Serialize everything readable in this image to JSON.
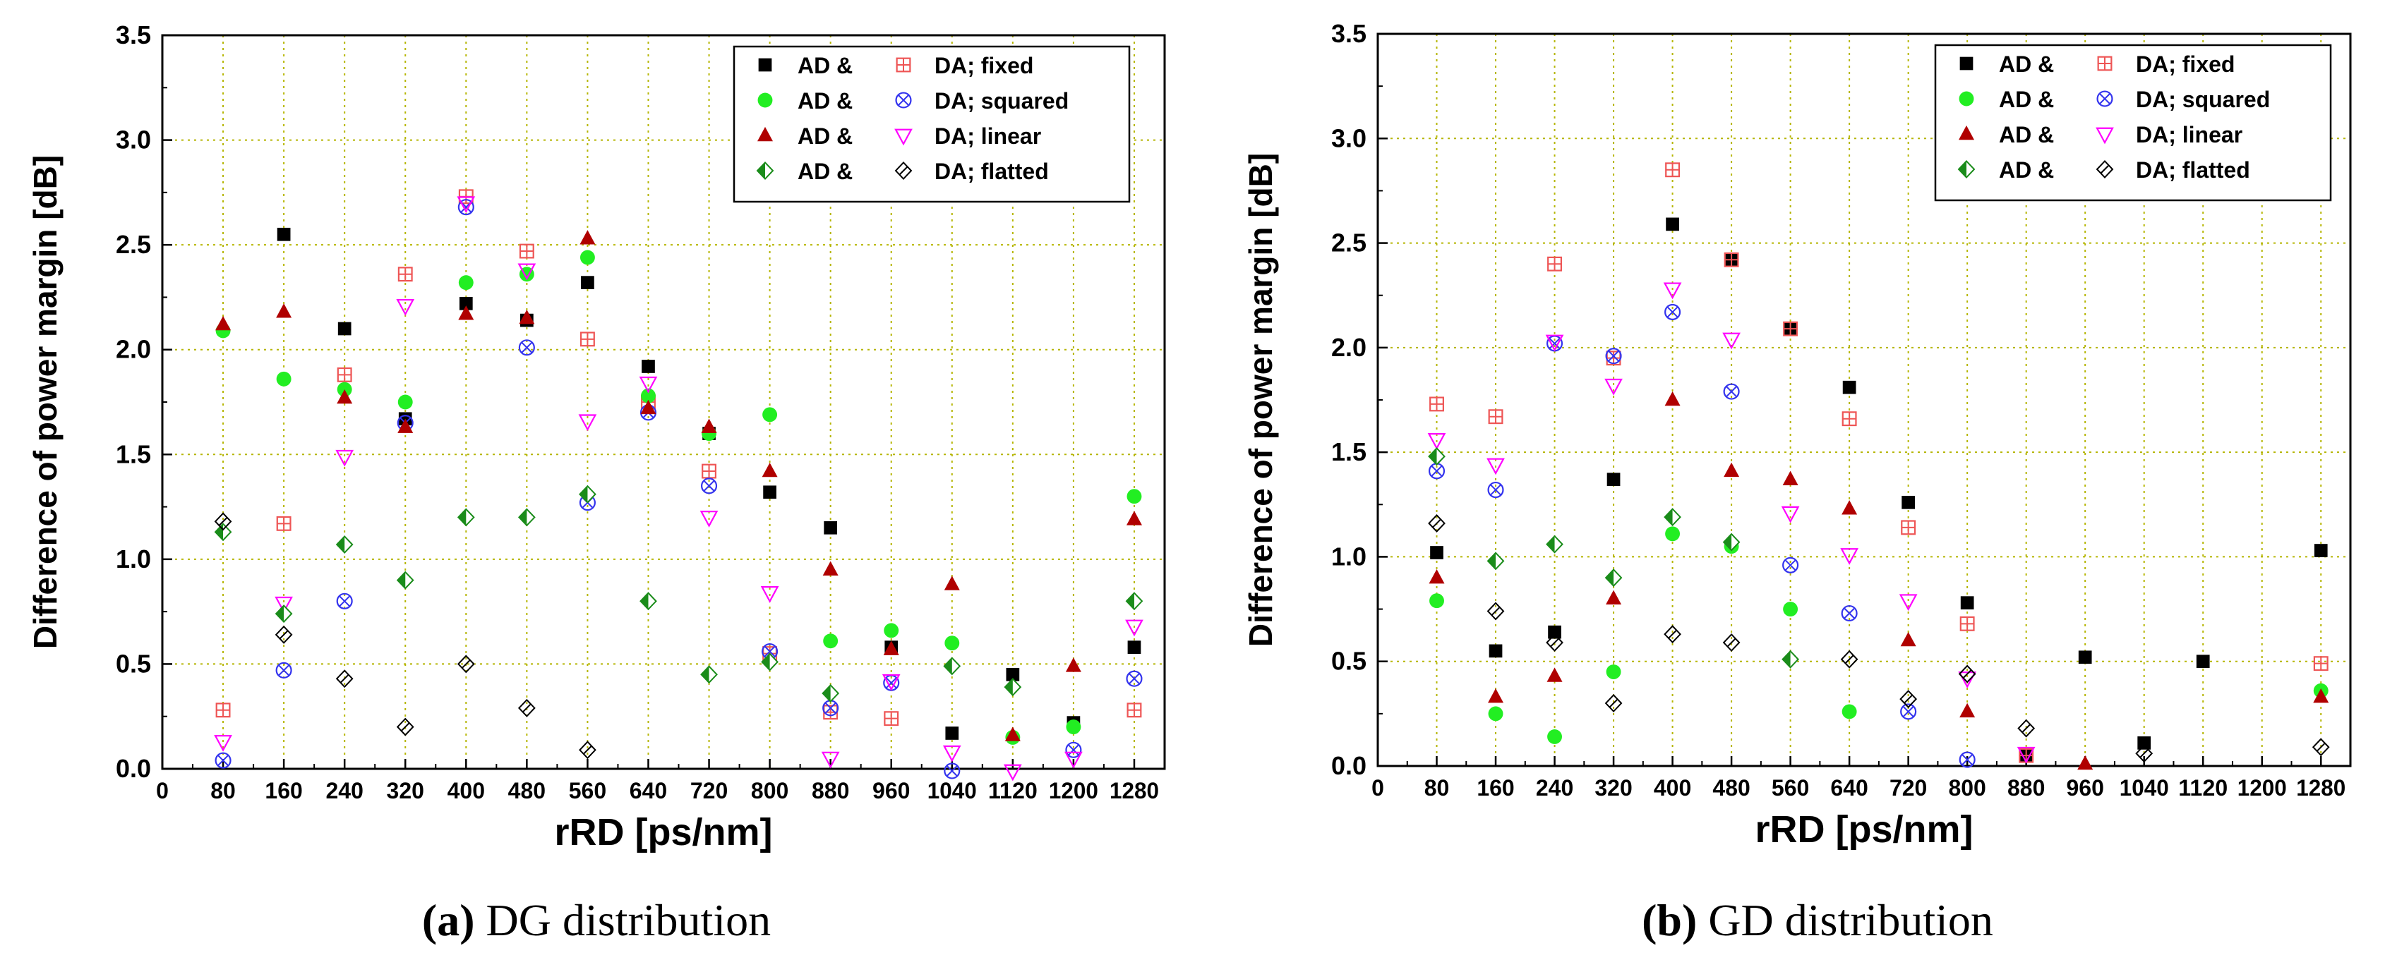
{
  "colors": {
    "axis": "#000000",
    "grid": "#b5b500",
    "black_square": "#000000",
    "green_circle": "#22ee22",
    "red_triangle": "#b00000",
    "green_diamond": "#1a8c1a",
    "red_squarecross": "#ee5555",
    "blue_circlecross": "#3333ee",
    "magenta_triangle": "#ff00ff",
    "black_diamond": "#000000"
  },
  "chart_data": [
    {
      "type": "scatter",
      "caption": {
        "label": "(a)",
        "text": "DG distribution"
      },
      "xlabel": "rRD [ps/nm]",
      "ylabel": "Difference of power margin [dB]",
      "xlim": [
        0,
        1320
      ],
      "ylim": [
        0,
        3.5
      ],
      "xticks": [
        "0",
        "80",
        "160",
        "240",
        "320",
        "400",
        "480",
        "560",
        "640",
        "720",
        "800",
        "880",
        "960",
        "1040",
        "1120",
        "1200",
        "1280"
      ],
      "yticks": [
        "0.0",
        "0.5",
        "1.0",
        "1.5",
        "2.0",
        "2.5",
        "3.0",
        "3.5"
      ],
      "grid": true,
      "legend_position": "top-right",
      "legend": [
        {
          "left": "AD &",
          "right": "DA; fixed"
        },
        {
          "left": "AD &",
          "right": "DA; squared"
        },
        {
          "left": "AD &",
          "right": "DA; linear"
        },
        {
          "left": "AD &",
          "right": "DA; flatted"
        }
      ],
      "series": [
        {
          "marker": "square",
          "color": "black_square",
          "points": [
            [
              160,
              2.55
            ],
            [
              240,
              2.1
            ],
            [
              320,
              1.67
            ],
            [
              400,
              2.22
            ],
            [
              480,
              2.14
            ],
            [
              560,
              2.32
            ],
            [
              640,
              1.92
            ],
            [
              720,
              1.6
            ],
            [
              800,
              1.32
            ],
            [
              880,
              1.15
            ],
            [
              960,
              0.58
            ],
            [
              1040,
              0.17
            ],
            [
              1120,
              0.45
            ],
            [
              1200,
              0.22
            ],
            [
              1280,
              0.58
            ]
          ]
        },
        {
          "marker": "square-cross",
          "color": "red_squarecross",
          "points": [
            [
              80,
              0.28
            ],
            [
              160,
              1.17
            ],
            [
              240,
              1.88
            ],
            [
              320,
              2.36
            ],
            [
              400,
              2.73
            ],
            [
              480,
              2.47
            ],
            [
              560,
              2.05
            ],
            [
              640,
              1.75
            ],
            [
              720,
              1.42
            ],
            [
              800,
              0.55
            ],
            [
              880,
              0.27
            ],
            [
              960,
              0.24
            ],
            [
              1280,
              0.28
            ]
          ]
        },
        {
          "marker": "circle",
          "color": "green_circle",
          "points": [
            [
              80,
              2.09
            ],
            [
              160,
              1.86
            ],
            [
              240,
              1.81
            ],
            [
              320,
              1.75
            ],
            [
              400,
              2.32
            ],
            [
              480,
              2.36
            ],
            [
              560,
              2.44
            ],
            [
              640,
              1.78
            ],
            [
              720,
              1.6
            ],
            [
              800,
              1.69
            ],
            [
              880,
              0.61
            ],
            [
              960,
              0.66
            ],
            [
              1040,
              0.6
            ],
            [
              1120,
              0.15
            ],
            [
              1200,
              0.2
            ],
            [
              1280,
              1.3
            ]
          ]
        },
        {
          "marker": "circle-cross",
          "color": "blue_circlecross",
          "points": [
            [
              80,
              0.04
            ],
            [
              160,
              0.47
            ],
            [
              240,
              0.8
            ],
            [
              320,
              1.65
            ],
            [
              400,
              2.68
            ],
            [
              480,
              2.01
            ],
            [
              560,
              1.27
            ],
            [
              640,
              1.7
            ],
            [
              720,
              1.35
            ],
            [
              800,
              0.56
            ],
            [
              880,
              0.29
            ],
            [
              960,
              0.41
            ],
            [
              1040,
              -0.01
            ],
            [
              1200,
              0.09
            ],
            [
              1280,
              0.43
            ]
          ]
        },
        {
          "marker": "triangle-up",
          "color": "red_triangle",
          "points": [
            [
              80,
              2.12
            ],
            [
              160,
              2.18
            ],
            [
              240,
              1.77
            ],
            [
              320,
              1.63
            ],
            [
              400,
              2.17
            ],
            [
              480,
              2.15
            ],
            [
              560,
              2.53
            ],
            [
              640,
              1.72
            ],
            [
              720,
              1.63
            ],
            [
              800,
              1.42
            ],
            [
              880,
              0.95
            ],
            [
              960,
              0.57
            ],
            [
              1040,
              0.88
            ],
            [
              1120,
              0.16
            ],
            [
              1200,
              0.49
            ],
            [
              1280,
              1.19
            ]
          ]
        },
        {
          "marker": "triangle-down",
          "color": "magenta_triangle",
          "points": [
            [
              80,
              0.13
            ],
            [
              160,
              0.79
            ],
            [
              240,
              1.49
            ],
            [
              320,
              2.21
            ],
            [
              400,
              2.7
            ],
            [
              480,
              2.38
            ],
            [
              560,
              1.66
            ],
            [
              640,
              1.84
            ],
            [
              720,
              1.2
            ],
            [
              800,
              0.84
            ],
            [
              880,
              0.05
            ],
            [
              960,
              0.42
            ],
            [
              1040,
              0.08
            ],
            [
              1120,
              -0.01
            ],
            [
              1200,
              0.05
            ],
            [
              1280,
              0.68
            ]
          ]
        },
        {
          "marker": "half-diamond",
          "color": "green_diamond",
          "points": [
            [
              80,
              1.13
            ],
            [
              160,
              0.74
            ],
            [
              240,
              1.07
            ],
            [
              320,
              0.9
            ],
            [
              400,
              1.2
            ],
            [
              480,
              1.2
            ],
            [
              560,
              1.31
            ],
            [
              640,
              0.8
            ],
            [
              720,
              0.45
            ],
            [
              800,
              0.51
            ],
            [
              880,
              0.36
            ],
            [
              1040,
              0.49
            ],
            [
              1120,
              0.39
            ],
            [
              1280,
              0.8
            ]
          ]
        },
        {
          "marker": "diamond-line",
          "color": "black_diamond",
          "points": [
            [
              80,
              1.18
            ],
            [
              160,
              0.64
            ],
            [
              240,
              0.43
            ],
            [
              320,
              0.2
            ],
            [
              400,
              0.5
            ],
            [
              480,
              0.29
            ],
            [
              560,
              0.09
            ]
          ]
        }
      ]
    },
    {
      "type": "scatter",
      "caption": {
        "label": "(b)",
        "text": "GD distribution"
      },
      "xlabel": "rRD [ps/nm]",
      "ylabel": "Difference of power margin [dB]",
      "xlim": [
        0,
        1320
      ],
      "ylim": [
        0,
        3.5
      ],
      "xticks": [
        "0",
        "80",
        "160",
        "240",
        "320",
        "400",
        "480",
        "560",
        "640",
        "720",
        "800",
        "880",
        "960",
        "1040",
        "1120",
        "1200",
        "1280"
      ],
      "yticks": [
        "0.0",
        "0.5",
        "1.0",
        "1.5",
        "2.0",
        "2.5",
        "3.0",
        "3.5"
      ],
      "grid": true,
      "legend_position": "top-right",
      "legend": [
        {
          "left": "AD &",
          "right": "DA; fixed"
        },
        {
          "left": "AD &",
          "right": "DA; squared"
        },
        {
          "left": "AD &",
          "right": "DA; linear"
        },
        {
          "left": "AD &",
          "right": "DA; flatted"
        }
      ],
      "series": [
        {
          "marker": "square",
          "color": "black_square",
          "points": [
            [
              80,
              1.02
            ],
            [
              160,
              0.55
            ],
            [
              240,
              0.64
            ],
            [
              320,
              1.37
            ],
            [
              400,
              2.59
            ],
            [
              480,
              2.42
            ],
            [
              560,
              2.09
            ],
            [
              640,
              1.81
            ],
            [
              720,
              1.26
            ],
            [
              800,
              0.78
            ],
            [
              880,
              0.05
            ],
            [
              960,
              0.52
            ],
            [
              1040,
              0.11
            ],
            [
              1120,
              0.5
            ],
            [
              1280,
              1.03
            ]
          ]
        },
        {
          "marker": "square-cross",
          "color": "red_squarecross",
          "points": [
            [
              80,
              1.73
            ],
            [
              160,
              1.67
            ],
            [
              240,
              2.4
            ],
            [
              320,
              1.95
            ],
            [
              400,
              2.85
            ],
            [
              480,
              2.42
            ],
            [
              560,
              2.09
            ],
            [
              640,
              1.66
            ],
            [
              720,
              1.14
            ],
            [
              800,
              0.68
            ],
            [
              880,
              0.05
            ],
            [
              1280,
              0.49
            ]
          ]
        },
        {
          "marker": "circle",
          "color": "green_circle",
          "points": [
            [
              80,
              0.79
            ],
            [
              160,
              0.25
            ],
            [
              240,
              0.14
            ],
            [
              320,
              0.45
            ],
            [
              400,
              1.11
            ],
            [
              480,
              1.05
            ],
            [
              560,
              0.75
            ],
            [
              640,
              0.26
            ],
            [
              1280,
              0.36
            ]
          ]
        },
        {
          "marker": "circle-cross",
          "color": "blue_circlecross",
          "points": [
            [
              80,
              1.41
            ],
            [
              160,
              1.32
            ],
            [
              240,
              2.02
            ],
            [
              320,
              1.96
            ],
            [
              400,
              2.17
            ],
            [
              480,
              1.79
            ],
            [
              560,
              0.96
            ],
            [
              640,
              0.73
            ],
            [
              720,
              0.26
            ],
            [
              800,
              0.03
            ]
          ]
        },
        {
          "marker": "triangle-up",
          "color": "red_triangle",
          "points": [
            [
              80,
              0.9
            ],
            [
              160,
              0.33
            ],
            [
              240,
              0.43
            ],
            [
              320,
              0.8
            ],
            [
              400,
              1.75
            ],
            [
              480,
              1.41
            ],
            [
              560,
              1.37
            ],
            [
              640,
              1.23
            ],
            [
              720,
              0.6
            ],
            [
              800,
              0.26
            ],
            [
              960,
              0.01
            ],
            [
              1280,
              0.33
            ]
          ]
        },
        {
          "marker": "triangle-down",
          "color": "magenta_triangle",
          "points": [
            [
              80,
              1.56
            ],
            [
              160,
              1.44
            ],
            [
              240,
              2.03
            ],
            [
              320,
              1.82
            ],
            [
              400,
              2.28
            ],
            [
              480,
              2.04
            ],
            [
              560,
              1.21
            ],
            [
              640,
              1.01
            ],
            [
              720,
              0.79
            ],
            [
              800,
              0.42
            ],
            [
              880,
              0.06
            ]
          ]
        },
        {
          "marker": "half-diamond",
          "color": "green_diamond",
          "points": [
            [
              80,
              1.48
            ],
            [
              160,
              0.98
            ],
            [
              240,
              1.06
            ],
            [
              320,
              0.9
            ],
            [
              400,
              1.19
            ],
            [
              480,
              1.07
            ],
            [
              560,
              0.51
            ]
          ]
        },
        {
          "marker": "diamond-line",
          "color": "black_diamond",
          "points": [
            [
              80,
              1.16
            ],
            [
              160,
              0.74
            ],
            [
              240,
              0.59
            ],
            [
              320,
              0.3
            ],
            [
              400,
              0.63
            ],
            [
              480,
              0.59
            ],
            [
              640,
              0.51
            ],
            [
              720,
              0.32
            ],
            [
              800,
              0.44
            ],
            [
              880,
              0.18
            ],
            [
              1040,
              0.06
            ],
            [
              1280,
              0.09
            ]
          ]
        }
      ]
    }
  ]
}
